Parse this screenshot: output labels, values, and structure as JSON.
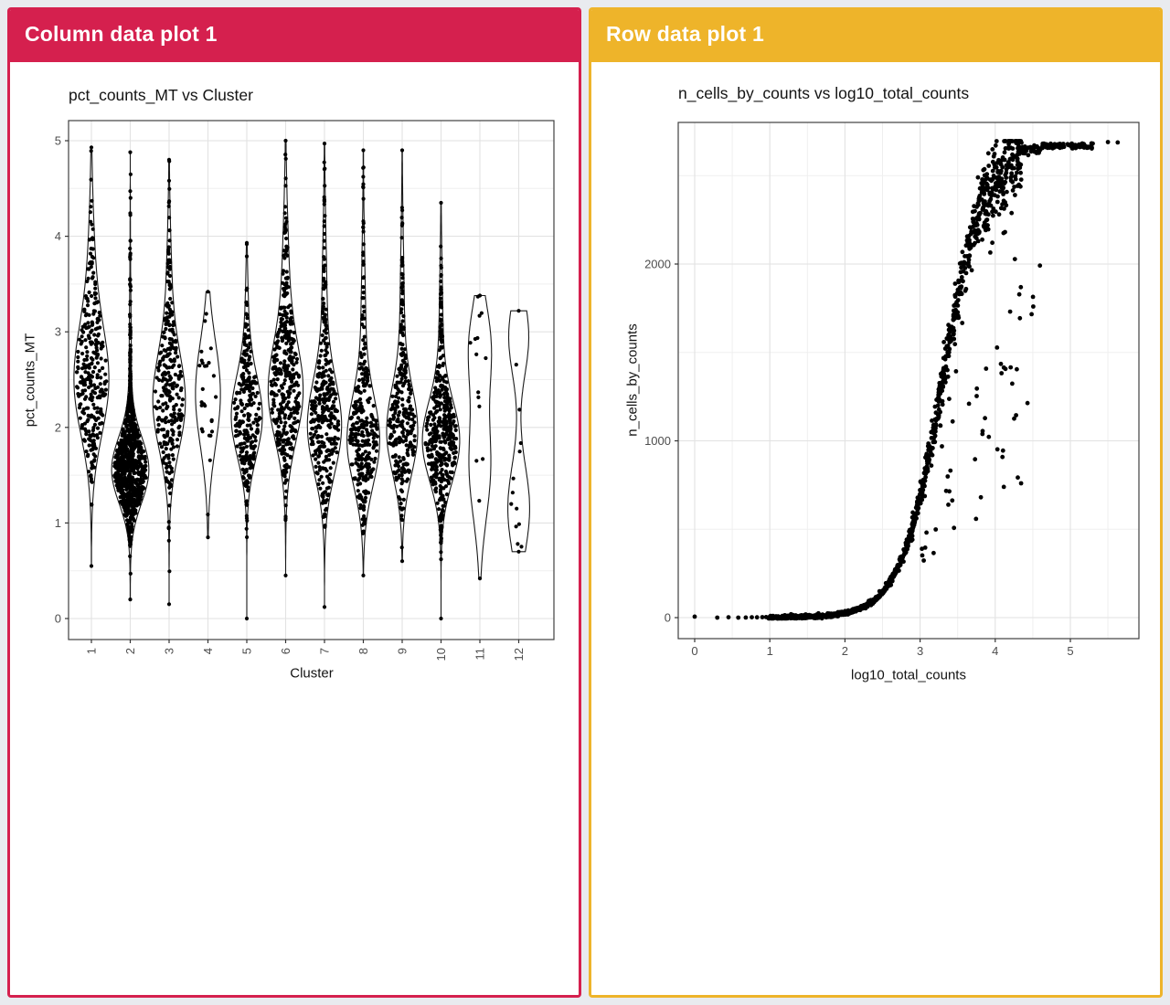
{
  "page": {
    "background": "#e9ebef"
  },
  "panels": [
    {
      "id": "column-data-plot-1",
      "header": {
        "label": "Column data plot 1",
        "color": "#d5204e",
        "text_color": "#ffffff"
      }
    },
    {
      "id": "row-data-plot-1",
      "header": {
        "label": "Row data plot 1",
        "color": "#eeb42a",
        "text_color": "#ffffff"
      }
    }
  ],
  "chart_data": [
    {
      "type": "violin",
      "title": "pct_counts_MT vs Cluster",
      "xlabel": "Cluster",
      "ylabel": "pct_counts_MT",
      "categories": [
        "1",
        "2",
        "3",
        "4",
        "5",
        "6",
        "7",
        "8",
        "9",
        "10",
        "11",
        "12"
      ],
      "ylim": [
        0,
        5
      ],
      "yticks": [
        0,
        1,
        2,
        3,
        4,
        5
      ],
      "yticks_minor": [
        0.5,
        1.5,
        2.5,
        3.5,
        4.5
      ],
      "grid": true,
      "legend": "none",
      "point_color": "#000000",
      "outline_color": "#1a1a1a",
      "violins": [
        {
          "cluster": "1",
          "range": [
            0.55,
            4.93
          ],
          "n_points": 300,
          "halfwidth": 0.45,
          "components": [
            {
              "mean": 2.45,
              "sd": 0.55,
              "weight": 0.75
            },
            {
              "mean": 3.4,
              "sd": 0.75,
              "weight": 0.25
            }
          ]
        },
        {
          "cluster": "2",
          "range": [
            0.2,
            4.88
          ],
          "n_points": 800,
          "halfwidth": 0.48,
          "components": [
            {
              "mean": 1.55,
              "sd": 0.34,
              "weight": 0.86
            },
            {
              "mean": 2.4,
              "sd": 0.85,
              "weight": 0.14
            }
          ]
        },
        {
          "cluster": "3",
          "range": [
            0.15,
            4.8
          ],
          "n_points": 280,
          "halfwidth": 0.42,
          "components": [
            {
              "mean": 2.25,
              "sd": 0.5,
              "weight": 0.8
            },
            {
              "mean": 3.3,
              "sd": 0.7,
              "weight": 0.2
            }
          ]
        },
        {
          "cluster": "4",
          "range": [
            0.85,
            3.42
          ],
          "n_points": 26,
          "halfwidth": 0.32,
          "components": [
            {
              "mean": 2.35,
              "sd": 0.55,
              "weight": 1
            }
          ]
        },
        {
          "cluster": "5",
          "range": [
            0.0,
            3.93
          ],
          "n_points": 260,
          "halfwidth": 0.4,
          "components": [
            {
              "mean": 2.1,
              "sd": 0.42,
              "weight": 0.85
            },
            {
              "mean": 2.9,
              "sd": 0.6,
              "weight": 0.15
            }
          ]
        },
        {
          "cluster": "6",
          "range": [
            0.45,
            5.0
          ],
          "n_points": 380,
          "halfwidth": 0.45,
          "components": [
            {
              "mean": 2.35,
              "sd": 0.5,
              "weight": 0.75
            },
            {
              "mean": 3.4,
              "sd": 0.75,
              "weight": 0.25
            }
          ]
        },
        {
          "cluster": "7",
          "range": [
            0.12,
            4.97
          ],
          "n_points": 340,
          "halfwidth": 0.44,
          "components": [
            {
              "mean": 2.0,
              "sd": 0.48,
              "weight": 0.8
            },
            {
              "mean": 3.2,
              "sd": 0.8,
              "weight": 0.2
            }
          ]
        },
        {
          "cluster": "8",
          "range": [
            0.45,
            4.9
          ],
          "n_points": 300,
          "halfwidth": 0.42,
          "components": [
            {
              "mean": 1.85,
              "sd": 0.46,
              "weight": 0.8
            },
            {
              "mean": 3.0,
              "sd": 0.8,
              "weight": 0.2
            }
          ]
        },
        {
          "cluster": "9",
          "range": [
            0.6,
            4.9
          ],
          "n_points": 280,
          "halfwidth": 0.4,
          "components": [
            {
              "mean": 1.95,
              "sd": 0.45,
              "weight": 0.8
            },
            {
              "mean": 3.1,
              "sd": 0.8,
              "weight": 0.2
            }
          ]
        },
        {
          "cluster": "10",
          "range": [
            0.0,
            4.35
          ],
          "n_points": 430,
          "halfwidth": 0.48,
          "components": [
            {
              "mean": 1.85,
              "sd": 0.42,
              "weight": 0.85
            },
            {
              "mean": 2.9,
              "sd": 0.7,
              "weight": 0.15
            }
          ]
        },
        {
          "cluster": "11",
          "range": [
            0.42,
            3.38
          ],
          "n_points": 14,
          "halfwidth": 0.3,
          "components": [
            {
              "mean": 1.6,
              "sd": 0.55,
              "weight": 0.55
            },
            {
              "mean": 2.85,
              "sd": 0.45,
              "weight": 0.45
            }
          ]
        },
        {
          "cluster": "12",
          "range": [
            0.7,
            3.22
          ],
          "n_points": 12,
          "halfwidth": 0.28,
          "components": [
            {
              "mean": 1.15,
              "sd": 0.45,
              "weight": 0.55
            },
            {
              "mean": 2.95,
              "sd": 0.4,
              "weight": 0.45
            }
          ]
        }
      ]
    },
    {
      "type": "scatter",
      "title": "n_cells_by_counts vs log10_total_counts",
      "xlabel": "log10_total_counts",
      "ylabel": "n_cells_by_counts",
      "xticks": [
        0,
        1,
        2,
        3,
        4,
        5
      ],
      "xticks_minor": [
        0.5,
        1.5,
        2.5,
        3.5,
        4.5,
        5.5
      ],
      "yticks": [
        0,
        1000,
        2000
      ],
      "yticks_minor": [
        500,
        1500,
        2500
      ],
      "xlim": [
        0,
        5.65
      ],
      "ylim": [
        0,
        2800
      ],
      "grid": true,
      "point_color": "#000000",
      "sigmoid": {
        "ymax": 2683,
        "midpoint": 3.3,
        "scale": 0.28
      },
      "x_distribution": {
        "low_sparse": [
          0.0,
          0.3,
          0.45,
          0.58,
          0.68,
          0.76,
          0.83,
          0.9,
          0.95
        ],
        "dense_start": 0.98,
        "dense_split": 2.85,
        "dense_end": 4.35,
        "n_dense": 1300,
        "plateau_start": 4.3,
        "plateau_end": 5.3,
        "n_plateau": 130
      },
      "outliers": {
        "n": 60,
        "x_range": [
          3.0,
          4.6
        ],
        "fraction_range": [
          0.25,
          0.88
        ]
      },
      "extra_points": [
        [
          5.5,
          2690
        ],
        [
          5.63,
          2688
        ]
      ]
    }
  ]
}
